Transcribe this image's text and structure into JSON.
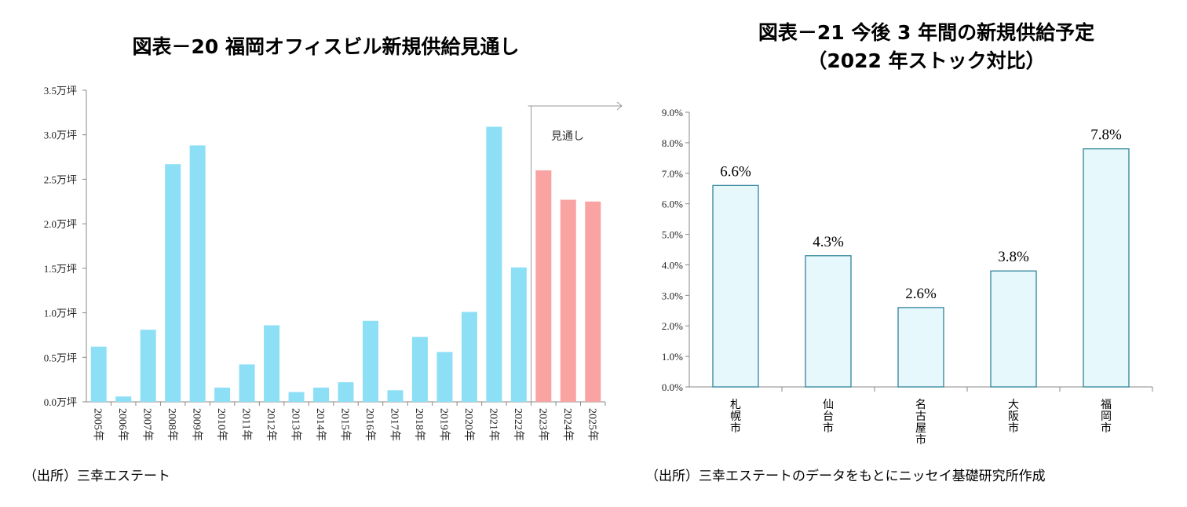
{
  "left": {
    "title": "図表－20 福岡オフィスビル新規供給見通し",
    "source": "（出所）三幸エステート"
  },
  "right": {
    "title_line1": "図表－21 今後 3  年間の新規供給予定",
    "title_line2": "（2022  年ストック対比）",
    "source": "（出所）三幸エステートのデータをもとにニッセイ基礎研究所作成"
  },
  "chart_data": [
    {
      "type": "bar",
      "title": "図表－20 福岡オフィスビル新規供給見通し",
      "xlabel": "",
      "ylabel": "",
      "ylim": [
        0,
        3.5
      ],
      "yticks": [
        "0.0万坪",
        "0.5万坪",
        "1.0万坪",
        "1.5万坪",
        "2.0万坪",
        "2.5万坪",
        "3.0万坪",
        "3.5万坪"
      ],
      "categories": [
        "2005年",
        "2006年",
        "2007年",
        "2008年",
        "2009年",
        "2010年",
        "2011年",
        "2012年",
        "2013年",
        "2014年",
        "2015年",
        "2016年",
        "2017年",
        "2018年",
        "2019年",
        "2020年",
        "2021年",
        "2022年",
        "2023年",
        "2024年",
        "2025年"
      ],
      "values": [
        0.62,
        0.06,
        0.81,
        2.67,
        2.88,
        0.16,
        0.42,
        0.86,
        0.11,
        0.16,
        0.22,
        0.91,
        0.13,
        0.73,
        0.56,
        1.01,
        3.09,
        1.51,
        2.6,
        2.27,
        2.25
      ],
      "colors": {
        "actual": "#8ddff5",
        "forecast": "#f9a3a3"
      },
      "forecast_start": "2023年",
      "annotation": "見通し",
      "grid": false
    },
    {
      "type": "bar",
      "title": "図表－21 今後 3  年間の新規供給予定（2022  年ストック対比）",
      "xlabel": "",
      "ylabel": "",
      "ylim": [
        0,
        9
      ],
      "yticks": [
        "0.0%",
        "1.0%",
        "2.0%",
        "3.0%",
        "4.0%",
        "5.0%",
        "6.0%",
        "7.0%",
        "8.0%",
        "9.0%"
      ],
      "categories": [
        "札幌市",
        "仙台市",
        "名古屋市",
        "大阪市",
        "福岡市"
      ],
      "values": [
        6.6,
        4.3,
        2.6,
        3.8,
        7.8
      ],
      "data_labels": [
        "6.6%",
        "4.3%",
        "2.6%",
        "3.8%",
        "7.8%"
      ],
      "colors": {
        "fill": "#e6f8fc",
        "stroke": "#31849b"
      },
      "grid": false
    }
  ]
}
